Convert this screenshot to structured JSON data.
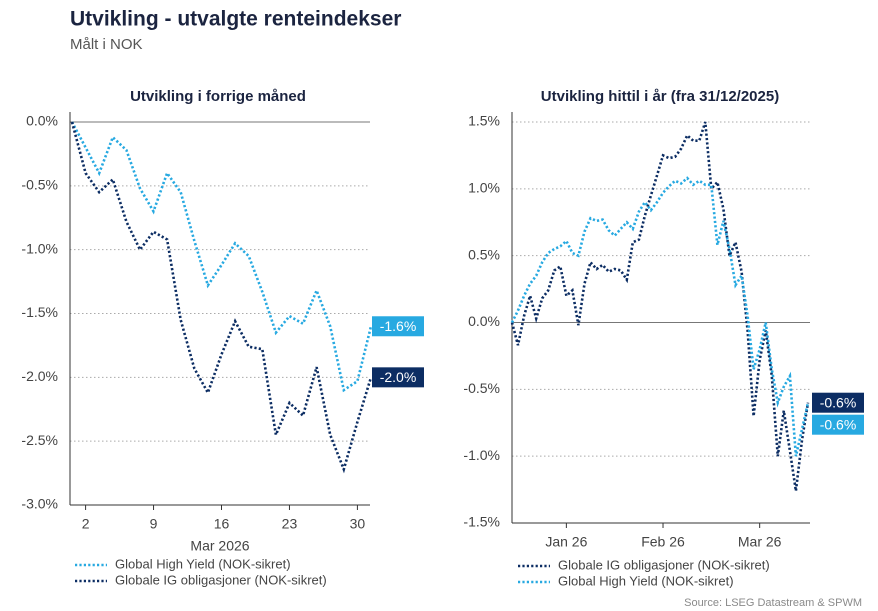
{
  "title": "Utvikling - utvalgte renteindekser",
  "subtitle": "Målt i NOK",
  "source": "Source: LSEG Datastream & SPWM",
  "chart_data": [
    {
      "type": "line",
      "title": "Utvikling i forrige måned",
      "xlabel": "Mar 2026",
      "categories": [
        null,
        "2",
        null,
        null,
        null,
        null,
        "9",
        null,
        null,
        null,
        null,
        "16",
        null,
        null,
        null,
        null,
        "23",
        null,
        null,
        null,
        null,
        "30",
        null
      ],
      "ylim": [
        -3.0,
        0.0
      ],
      "yticks": [
        {
          "value": 0.0,
          "label": "0.0%"
        },
        {
          "value": -0.5,
          "label": "-0.5%"
        },
        {
          "value": -1.0,
          "label": "-1.0%"
        },
        {
          "value": -1.5,
          "label": "-1.5%"
        },
        {
          "value": -2.0,
          "label": "-2.0%"
        },
        {
          "value": -2.5,
          "label": "-2.5%"
        },
        {
          "value": -3.0,
          "label": "-3.0%"
        }
      ],
      "grid": true,
      "legend": "bottom",
      "series": [
        {
          "name": "Global High Yield (NOK-sikret)",
          "color": "#27a9e1",
          "values": [
            0,
            -0.2,
            -0.4,
            -0.12,
            -0.22,
            -0.52,
            -0.7,
            -0.4,
            -0.55,
            -0.93,
            -1.28,
            -1.12,
            -0.95,
            -1.05,
            -1.33,
            -1.65,
            -1.52,
            -1.58,
            -1.32,
            -1.6,
            -2.1,
            -2.03,
            -1.6
          ],
          "value_labels": [
            null,
            null,
            null,
            null,
            null,
            null,
            null,
            null,
            null,
            null,
            null,
            null,
            null,
            null,
            null,
            null,
            null,
            null,
            null,
            null,
            null,
            null,
            "-1.6%"
          ]
        },
        {
          "name": "Globale IG obligasjoner (NOK-sikret)",
          "color": "#0c2d63",
          "values": [
            0,
            -0.4,
            -0.55,
            -0.45,
            -0.78,
            -1.0,
            -0.86,
            -0.92,
            -1.55,
            -1.93,
            -2.12,
            -1.82,
            -1.56,
            -1.76,
            -1.78,
            -2.45,
            -2.2,
            -2.3,
            -1.92,
            -2.45,
            -2.72,
            -2.35,
            -2.0
          ],
          "value_labels": [
            null,
            null,
            null,
            null,
            null,
            null,
            null,
            null,
            null,
            null,
            null,
            null,
            null,
            null,
            null,
            null,
            null,
            null,
            null,
            null,
            null,
            null,
            "-2.0%"
          ]
        }
      ]
    },
    {
      "type": "line",
      "title": "Utvikling hittil i år (fra 31/12/2025)",
      "categories": [
        null,
        null,
        null,
        null,
        null,
        null,
        null,
        null,
        null,
        "Jan 26",
        null,
        null,
        null,
        null,
        null,
        null,
        null,
        null,
        null,
        null,
        null,
        null,
        null,
        null,
        null,
        "Feb 26",
        null,
        null,
        null,
        null,
        null,
        null,
        null,
        null,
        null,
        null,
        null,
        null,
        null,
        null,
        null,
        "Mar 26",
        null,
        null,
        null,
        null,
        null,
        null,
        null,
        null
      ],
      "ylim": [
        -1.5,
        1.5
      ],
      "yticks": [
        {
          "value": 1.5,
          "label": "1.5%"
        },
        {
          "value": 1.0,
          "label": "1.0%"
        },
        {
          "value": 0.5,
          "label": "0.5%"
        },
        {
          "value": 0.0,
          "label": "0.0%"
        },
        {
          "value": -0.5,
          "label": "-0.5%"
        },
        {
          "value": -1.0,
          "label": "-1.0%"
        },
        {
          "value": -1.5,
          "label": "-1.5%"
        }
      ],
      "grid": true,
      "legend": "bottom",
      "series": [
        {
          "name": "Globale IG obligasjoner (NOK-sikret)",
          "color": "#0c2d63",
          "values": [
            0,
            -0.17,
            0.05,
            0.2,
            0.03,
            0.18,
            0.24,
            0.39,
            0.42,
            0.2,
            0.24,
            -0.02,
            0.29,
            0.45,
            0.4,
            0.43,
            0.38,
            0.4,
            0.39,
            0.32,
            0.6,
            0.62,
            0.8,
            0.95,
            1.1,
            1.25,
            1.23,
            1.24,
            1.3,
            1.4,
            1.36,
            1.36,
            1.5,
            1.0,
            1.05,
            0.85,
            0.5,
            0.6,
            0.38,
            -0.06,
            -0.7,
            -0.28,
            -0.06,
            -0.4,
            -1.0,
            -0.66,
            -0.96,
            -1.26,
            -0.88,
            -0.6
          ],
          "value_labels": [
            null,
            null,
            null,
            null,
            null,
            null,
            null,
            null,
            null,
            null,
            null,
            null,
            null,
            null,
            null,
            null,
            null,
            null,
            null,
            null,
            null,
            null,
            null,
            null,
            null,
            null,
            null,
            null,
            null,
            null,
            null,
            null,
            null,
            null,
            null,
            null,
            null,
            null,
            null,
            null,
            null,
            null,
            null,
            null,
            null,
            null,
            null,
            null,
            null,
            "-0.6%"
          ]
        },
        {
          "name": "Global High Yield (NOK-sikret)",
          "color": "#27a9e1",
          "values": [
            0,
            0.09,
            0.2,
            0.29,
            0.35,
            0.45,
            0.52,
            0.55,
            0.57,
            0.61,
            0.52,
            0.5,
            0.68,
            0.78,
            0.76,
            0.77,
            0.69,
            0.65,
            0.7,
            0.75,
            0.7,
            0.83,
            0.9,
            0.84,
            0.9,
            0.97,
            1.02,
            1.06,
            1.04,
            1.08,
            1.03,
            1.06,
            1.03,
            1.03,
            0.58,
            0.76,
            0.55,
            0.28,
            0.35,
            0.05,
            -0.35,
            -0.2,
            0.0,
            -0.35,
            -0.6,
            -0.48,
            -0.4,
            -1.0,
            -0.8,
            -0.6
          ],
          "value_labels": [
            null,
            null,
            null,
            null,
            null,
            null,
            null,
            null,
            null,
            null,
            null,
            null,
            null,
            null,
            null,
            null,
            null,
            null,
            null,
            null,
            null,
            null,
            null,
            null,
            null,
            null,
            null,
            null,
            null,
            null,
            null,
            null,
            null,
            null,
            null,
            null,
            null,
            null,
            null,
            null,
            null,
            null,
            null,
            null,
            null,
            null,
            null,
            null,
            null,
            "-0.6%"
          ]
        }
      ]
    }
  ]
}
